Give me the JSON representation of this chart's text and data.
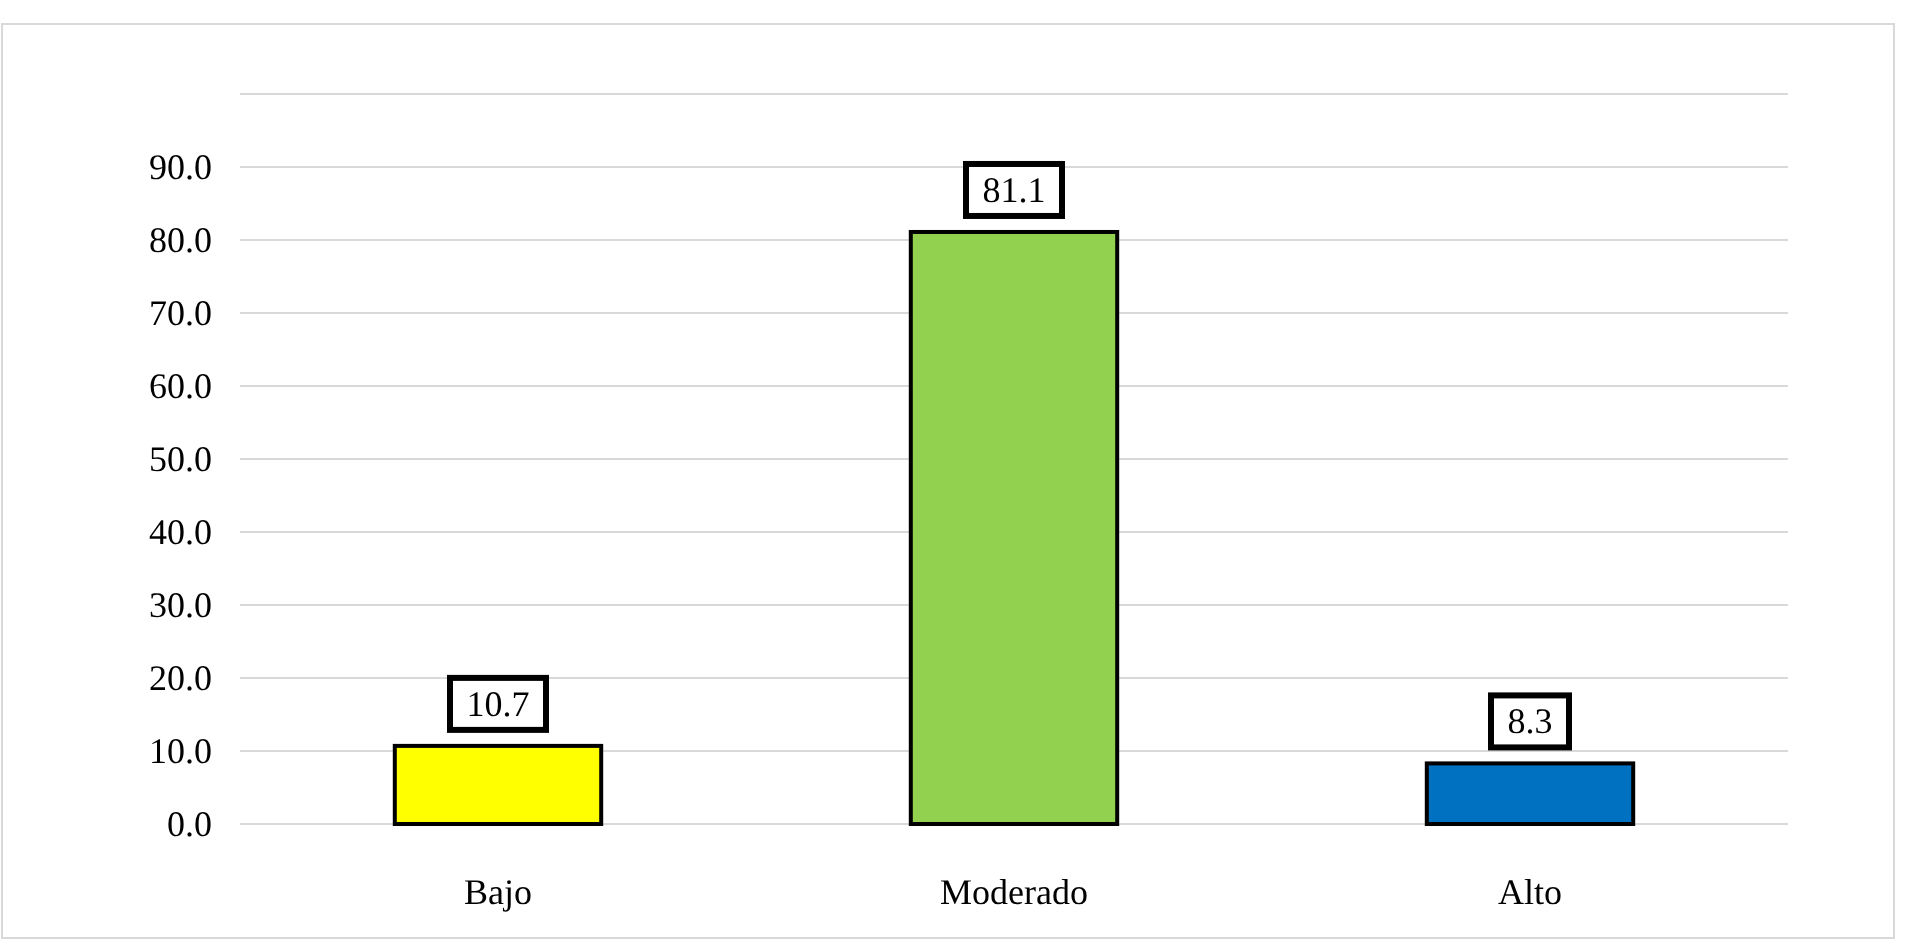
{
  "chart_data": {
    "type": "bar",
    "categories": [
      "Bajo",
      "Moderado",
      "Alto"
    ],
    "values": [
      10.7,
      81.1,
      8.3
    ],
    "colors": [
      "#ffff00",
      "#92d050",
      "#0070c0"
    ],
    "ylim": [
      0,
      100
    ],
    "yticks": [
      {
        "value": 0,
        "label": "0.0"
      },
      {
        "value": 10,
        "label": "10.0"
      },
      {
        "value": 20,
        "label": "20.0"
      },
      {
        "value": 30,
        "label": "30.0"
      },
      {
        "value": 40,
        "label": "40.0"
      },
      {
        "value": 50,
        "label": "50.0"
      },
      {
        "value": 60,
        "label": "60.0"
      },
      {
        "value": 70,
        "label": "70.0"
      },
      {
        "value": 80,
        "label": "80.0"
      },
      {
        "value": 90,
        "label": "90.0"
      },
      {
        "value": 100,
        "label": null
      }
    ],
    "grid": true,
    "data_labels": true
  }
}
